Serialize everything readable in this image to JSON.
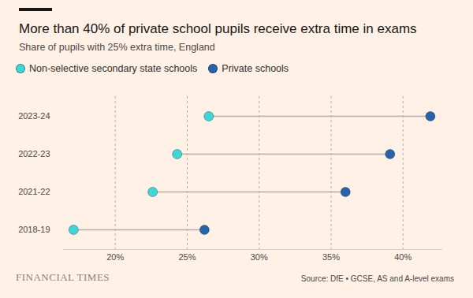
{
  "chart_data": {
    "type": "dumbbell",
    "title": "More than 40% of private school pupils receive extra time in exams",
    "subtitle": "Share of pupils with 25% extra time, England",
    "categories": [
      "2023-24",
      "2022-23",
      "2021-22",
      "2018-19"
    ],
    "series": [
      {
        "name": "Non-selective secondary state schools",
        "color": "#3ed6d9",
        "values": [
          26.5,
          24.3,
          22.6,
          17.1
        ]
      },
      {
        "name": "Private schools",
        "color": "#2563ab",
        "values": [
          41.9,
          39.1,
          36.0,
          26.2
        ]
      }
    ],
    "xlim": [
      16.4,
      42.7
    ],
    "xticks": [
      {
        "value": 20,
        "label": "20%"
      },
      {
        "value": 25,
        "label": "25%"
      },
      {
        "value": 30,
        "label": "30%"
      },
      {
        "value": 35,
        "label": "35%"
      },
      {
        "value": 40,
        "label": "40%"
      }
    ],
    "grid": true,
    "legend": "top-left",
    "credit": "FINANCIAL TIMES",
    "source": "Source: DfE • GCSE, AS and A-level exams"
  }
}
